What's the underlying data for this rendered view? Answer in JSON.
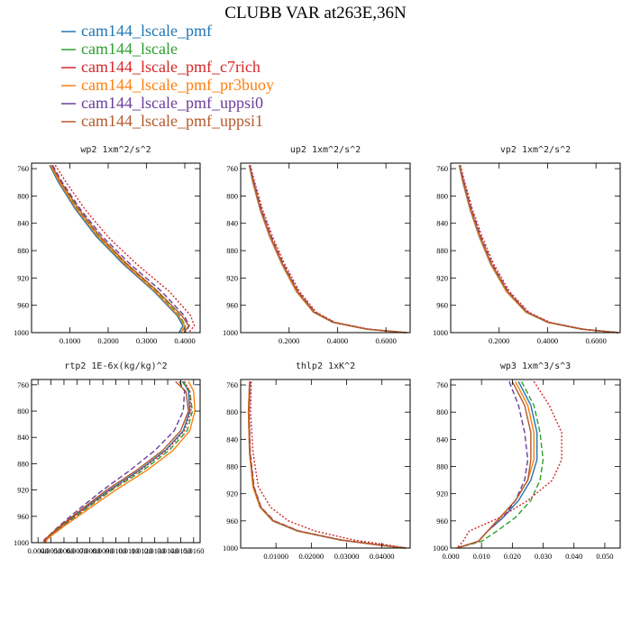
{
  "figure": {
    "title": "CLUBB VAR at263E,36N"
  },
  "legend": [
    {
      "name": "cam144_lscale_pmf",
      "color": "#1f77b4",
      "dash": "solid"
    },
    {
      "name": "cam144_lscale",
      "color": "#2ca02c",
      "dash": "dashed"
    },
    {
      "name": "cam144_lscale_pmf_c7rich",
      "color": "#d62728",
      "dash": "dotted"
    },
    {
      "name": "cam144_lscale_pmf_pr3buoy",
      "color": "#ff7f0e",
      "dash": "solid"
    },
    {
      "name": "cam144_lscale_pmf_uppsi0",
      "color": "#6a3d9a",
      "dash": "dashed"
    },
    {
      "name": "cam144_lscale_pmf_uppsi1",
      "color": "#b5582a",
      "dash": "solid"
    }
  ],
  "chart_data": [
    {
      "type": "line",
      "title": "wp2  1xm^2/s^2",
      "xlim": [
        0,
        0.44
      ],
      "ylim": [
        1000,
        752
      ],
      "xticks": [
        0.1,
        0.2,
        0.3,
        0.4
      ],
      "xtick_labels": [
        "0.1000",
        "0.2000",
        "0.3000",
        "0.4000"
      ],
      "yticks": [
        760,
        800,
        840,
        880,
        920,
        960,
        1000
      ],
      "y": [
        755,
        780,
        820,
        860,
        900,
        940,
        975,
        990,
        1000
      ],
      "series": [
        {
          "name": "cam144_lscale_pmf",
          "x": [
            0.047,
            0.07,
            0.115,
            0.17,
            0.24,
            0.32,
            0.38,
            0.395,
            0.385
          ]
        },
        {
          "name": "cam144_lscale",
          "x": [
            0.05,
            0.075,
            0.12,
            0.176,
            0.246,
            0.326,
            0.386,
            0.402,
            0.392
          ]
        },
        {
          "name": "cam144_lscale_pmf_c7rich",
          "x": [
            0.062,
            0.09,
            0.14,
            0.2,
            0.275,
            0.36,
            0.415,
            0.425,
            0.41
          ]
        },
        {
          "name": "cam144_lscale_pmf_pr3buoy",
          "x": [
            0.049,
            0.073,
            0.118,
            0.174,
            0.244,
            0.323,
            0.383,
            0.4,
            0.39
          ]
        },
        {
          "name": "cam144_lscale_pmf_uppsi0",
          "x": [
            0.055,
            0.08,
            0.128,
            0.186,
            0.258,
            0.34,
            0.398,
            0.412,
            0.4
          ]
        },
        {
          "name": "cam144_lscale_pmf_uppsi1",
          "x": [
            0.052,
            0.077,
            0.124,
            0.18,
            0.25,
            0.33,
            0.392,
            0.41,
            0.398
          ]
        }
      ]
    },
    {
      "type": "line",
      "title": "up2  1xm^2/s^2",
      "xlim": [
        0,
        0.7
      ],
      "ylim": [
        1000,
        752
      ],
      "xticks": [
        0.2,
        0.4,
        0.6
      ],
      "xtick_labels": [
        "0.2000",
        "0.4000",
        "0.6000"
      ],
      "yticks": [
        760,
        800,
        840,
        880,
        920,
        960,
        1000
      ],
      "y": [
        755,
        780,
        820,
        860,
        900,
        940,
        970,
        985,
        995,
        1000
      ],
      "series": [
        {
          "name": "cam144_lscale_pmf",
          "x": [
            0.035,
            0.05,
            0.08,
            0.12,
            0.17,
            0.23,
            0.3,
            0.38,
            0.52,
            0.68
          ]
        },
        {
          "name": "cam144_lscale",
          "x": [
            0.036,
            0.052,
            0.082,
            0.122,
            0.172,
            0.232,
            0.302,
            0.382,
            0.522,
            0.68
          ]
        },
        {
          "name": "cam144_lscale_pmf_c7rich",
          "x": [
            0.04,
            0.058,
            0.09,
            0.132,
            0.182,
            0.243,
            0.312,
            0.39,
            0.53,
            0.69
          ]
        },
        {
          "name": "cam144_lscale_pmf_pr3buoy",
          "x": [
            0.036,
            0.051,
            0.081,
            0.121,
            0.171,
            0.231,
            0.301,
            0.381,
            0.521,
            0.68
          ]
        },
        {
          "name": "cam144_lscale_pmf_uppsi0",
          "x": [
            0.038,
            0.055,
            0.086,
            0.127,
            0.177,
            0.238,
            0.307,
            0.386,
            0.526,
            0.685
          ]
        },
        {
          "name": "cam144_lscale_pmf_uppsi1",
          "x": [
            0.037,
            0.053,
            0.083,
            0.124,
            0.174,
            0.235,
            0.304,
            0.384,
            0.524,
            0.682
          ]
        }
      ]
    },
    {
      "type": "line",
      "title": "vp2  1xm^2/s^2",
      "xlim": [
        0,
        0.7
      ],
      "ylim": [
        1000,
        752
      ],
      "xticks": [
        0.2,
        0.4,
        0.6
      ],
      "xtick_labels": [
        "0.2000",
        "0.4000",
        "0.6000"
      ],
      "yticks": [
        760,
        800,
        840,
        880,
        920,
        960,
        1000
      ],
      "y": [
        755,
        780,
        820,
        860,
        900,
        940,
        970,
        985,
        995,
        1000
      ],
      "series": [
        {
          "name": "cam144_lscale_pmf",
          "x": [
            0.035,
            0.05,
            0.08,
            0.118,
            0.165,
            0.23,
            0.31,
            0.4,
            0.54,
            0.69
          ]
        },
        {
          "name": "cam144_lscale",
          "x": [
            0.036,
            0.052,
            0.082,
            0.12,
            0.167,
            0.232,
            0.312,
            0.402,
            0.542,
            0.69
          ]
        },
        {
          "name": "cam144_lscale_pmf_c7rich",
          "x": [
            0.04,
            0.058,
            0.09,
            0.13,
            0.178,
            0.243,
            0.322,
            0.41,
            0.55,
            0.695
          ]
        },
        {
          "name": "cam144_lscale_pmf_pr3buoy",
          "x": [
            0.036,
            0.051,
            0.081,
            0.119,
            0.166,
            0.231,
            0.311,
            0.401,
            0.541,
            0.69
          ]
        },
        {
          "name": "cam144_lscale_pmf_uppsi0",
          "x": [
            0.038,
            0.055,
            0.086,
            0.125,
            0.172,
            0.238,
            0.317,
            0.406,
            0.546,
            0.692
          ]
        },
        {
          "name": "cam144_lscale_pmf_uppsi1",
          "x": [
            0.037,
            0.053,
            0.083,
            0.122,
            0.169,
            0.235,
            0.314,
            0.404,
            0.544,
            0.691
          ]
        }
      ]
    },
    {
      "type": "line",
      "title": "rtp2  1E-6x(kg/kg)^2",
      "xlim": [
        0.0035,
        0.0165
      ],
      "ylim": [
        1000,
        752
      ],
      "xticks": [
        0.004,
        0.005,
        0.006,
        0.007,
        0.008,
        0.009,
        0.01,
        0.011,
        0.012,
        0.013,
        0.014,
        0.015,
        0.016
      ],
      "xtick_labels": [
        "0.0040",
        "0.0050",
        "0.0060",
        "0.0070",
        "0.0080",
        "0.0090",
        "0.0100",
        "0.0110",
        "0.0120",
        "0.0130",
        "0.0140",
        "0.0150",
        "0.0160"
      ],
      "yticks": [
        760,
        800,
        840,
        880,
        920,
        960,
        1000
      ],
      "y": [
        755,
        770,
        800,
        830,
        860,
        890,
        920,
        950,
        975,
        990,
        995,
        1000
      ],
      "series": [
        {
          "name": "cam144_lscale_pmf",
          "x": [
            0.0152,
            0.0156,
            0.0157,
            0.0152,
            0.0138,
            0.0118,
            0.0095,
            0.0074,
            0.0058,
            0.0049,
            0.0046,
            0.0045
          ]
        },
        {
          "name": "cam144_lscale",
          "x": [
            0.0151,
            0.0157,
            0.0159,
            0.0155,
            0.0141,
            0.0121,
            0.0097,
            0.0076,
            0.0059,
            0.0049,
            0.0046,
            0.0045
          ]
        },
        {
          "name": "cam144_lscale_pmf_c7rich",
          "x": [
            0.0153,
            0.0157,
            0.0158,
            0.0153,
            0.0139,
            0.0119,
            0.0096,
            0.0075,
            0.0058,
            0.0049,
            0.0046,
            0.0045
          ]
        },
        {
          "name": "cam144_lscale_pmf_pr3buoy",
          "x": [
            0.0156,
            0.016,
            0.0161,
            0.0157,
            0.0144,
            0.0124,
            0.01,
            0.0078,
            0.006,
            0.005,
            0.0047,
            0.0046
          ]
        },
        {
          "name": "cam144_lscale_pmf_uppsi0",
          "x": [
            0.0149,
            0.0153,
            0.0152,
            0.0145,
            0.013,
            0.0111,
            0.009,
            0.0071,
            0.0056,
            0.0048,
            0.0045,
            0.0044
          ]
        },
        {
          "name": "cam144_lscale_pmf_uppsi1",
          "x": [
            0.0146,
            0.0154,
            0.0156,
            0.015,
            0.0136,
            0.0116,
            0.0093,
            0.0073,
            0.0057,
            0.0048,
            0.0046,
            0.0045
          ]
        }
      ]
    },
    {
      "type": "line",
      "title": "thlp2  1xK^2",
      "xlim": [
        0,
        0.048
      ],
      "ylim": [
        1000,
        752
      ],
      "xticks": [
        0.01,
        0.02,
        0.03,
        0.04
      ],
      "xtick_labels": [
        "0.01000",
        "0.02000",
        "0.03000",
        "0.04000"
      ],
      "yticks": [
        760,
        800,
        840,
        880,
        920,
        960,
        1000
      ],
      "y": [
        755,
        800,
        860,
        910,
        940,
        960,
        975,
        988,
        995,
        1000
      ],
      "series": [
        {
          "name": "cam144_lscale_pmf",
          "x": [
            0.0025,
            0.0022,
            0.0025,
            0.0035,
            0.0055,
            0.009,
            0.016,
            0.028,
            0.038,
            0.046
          ]
        },
        {
          "name": "cam144_lscale",
          "x": [
            0.0026,
            0.0023,
            0.0026,
            0.0036,
            0.0056,
            0.0092,
            0.0163,
            0.0283,
            0.0385,
            0.047
          ]
        },
        {
          "name": "cam144_lscale_pmf_c7rich",
          "x": [
            0.003,
            0.0028,
            0.0035,
            0.005,
            0.0085,
            0.0135,
            0.021,
            0.032,
            0.041,
            0.047
          ]
        },
        {
          "name": "cam144_lscale_pmf_pr3buoy",
          "x": [
            0.0025,
            0.0022,
            0.0025,
            0.0035,
            0.0055,
            0.0091,
            0.0162,
            0.0282,
            0.0382,
            0.0465
          ]
        },
        {
          "name": "cam144_lscale_pmf_uppsi0",
          "x": [
            0.0027,
            0.0024,
            0.0027,
            0.0038,
            0.0058,
            0.0095,
            0.0166,
            0.0286,
            0.0388,
            0.047
          ]
        },
        {
          "name": "cam144_lscale_pmf_uppsi1",
          "x": [
            0.0026,
            0.0023,
            0.0026,
            0.0037,
            0.0057,
            0.0093,
            0.0164,
            0.0284,
            0.0386,
            0.0468
          ]
        }
      ]
    },
    {
      "type": "line",
      "title": "wp3  1xm^3/s^3",
      "xlim": [
        0,
        0.055
      ],
      "ylim": [
        1000,
        752
      ],
      "xticks": [
        0,
        0.01,
        0.02,
        0.03,
        0.04,
        0.05
      ],
      "xtick_labels": [
        "0.000",
        "0.010",
        "0.020",
        "0.030",
        "0.040",
        "0.050"
      ],
      "yticks": [
        760,
        800,
        840,
        880,
        920,
        960,
        1000
      ],
      "y": [
        755,
        790,
        830,
        870,
        900,
        930,
        955,
        975,
        990,
        1000
      ],
      "series": [
        {
          "name": "cam144_lscale_pmf",
          "x": [
            0.022,
            0.026,
            0.028,
            0.028,
            0.026,
            0.022,
            0.017,
            0.012,
            0.009,
            0.002
          ]
        },
        {
          "name": "cam144_lscale",
          "x": [
            0.023,
            0.027,
            0.029,
            0.03,
            0.029,
            0.026,
            0.021,
            0.015,
            0.01,
            0.002
          ]
        },
        {
          "name": "cam144_lscale_pmf_c7rich",
          "x": [
            0.027,
            0.032,
            0.036,
            0.036,
            0.033,
            0.025,
            0.016,
            0.006,
            0.004,
            0.002
          ]
        },
        {
          "name": "cam144_lscale_pmf_pr3buoy",
          "x": [
            0.021,
            0.025,
            0.027,
            0.027,
            0.025,
            0.021,
            0.016,
            0.012,
            0.009,
            0.002
          ]
        },
        {
          "name": "cam144_lscale_pmf_uppsi0",
          "x": [
            0.019,
            0.022,
            0.024,
            0.025,
            0.024,
            0.021,
            0.017,
            0.012,
            0.009,
            0.002
          ]
        },
        {
          "name": "cam144_lscale_pmf_uppsi1",
          "x": [
            0.02,
            0.024,
            0.026,
            0.026,
            0.025,
            0.021,
            0.016,
            0.012,
            0.009,
            0.002
          ]
        }
      ]
    }
  ]
}
